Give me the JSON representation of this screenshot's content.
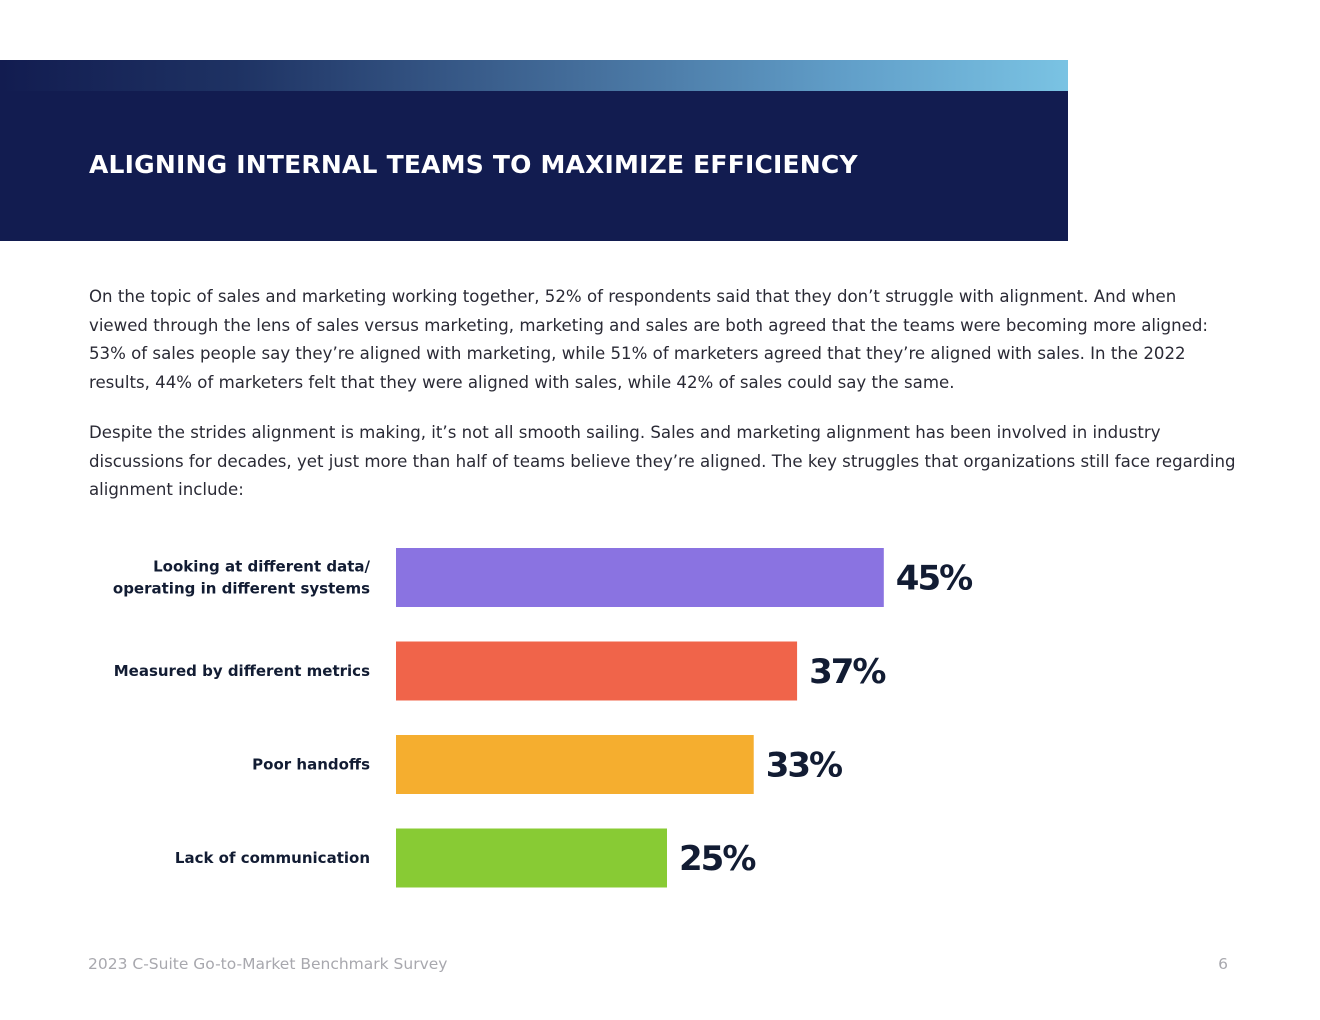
{
  "header": {
    "title": "Aligning internal teams to maximize efficiency"
  },
  "body": {
    "paragraph_1": "On the topic of sales and marketing working together, 52% of respondents said that they don’t struggle with alignment. And when viewed through the lens of sales versus marketing, marketing and sales are both agreed that the teams were becoming more aligned: 53% of sales people say they’re aligned with marketing, while 51% of marketers agreed that they’re aligned with sales. In the 2022 results, 44% of marketers felt that they were aligned with sales, while 42% of sales could say the same.",
    "paragraph_2": "Despite the strides alignment is making, it’s not all smooth sailing. Sales and marketing alignment has been involved in industry discussions for decades, yet just more than half of teams believe they’re aligned. The key struggles that organizations still face regarding alignment include:"
  },
  "chart_data": {
    "type": "bar",
    "orientation": "horizontal",
    "categories": [
      [
        "Looking at different data/",
        "operating in different systems"
      ],
      [
        "Measured by different metrics"
      ],
      [
        "Poor handoffs"
      ],
      [
        "Lack of communication"
      ]
    ],
    "values": [
      45,
      37,
      33,
      25
    ],
    "value_labels": [
      "45%",
      "37%",
      "33%",
      "25%"
    ],
    "colors": [
      "#8a73e1",
      "#f0644a",
      "#f5ae2f",
      "#88cb34"
    ],
    "xlim": [
      0,
      100
    ],
    "grid": false,
    "legend": "none"
  },
  "footer": {
    "survey_name": "2023 C-Suite Go-to-Market Benchmark Survey",
    "page_number": "6"
  }
}
